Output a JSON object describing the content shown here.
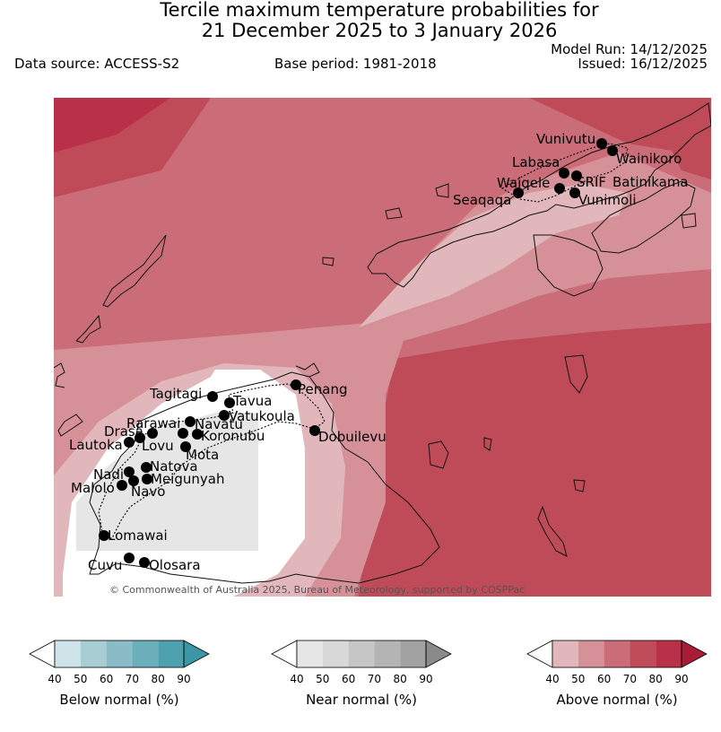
{
  "title": {
    "line1": "Tercile maximum temperature probabilities for",
    "line2": "21 December 2025 to 3 January 2026"
  },
  "header": {
    "data_source": "Data source: ACCESS-S2",
    "base_period": "Base period: 1981-2018",
    "model_run": "Model Run: 14/12/2025",
    "issued": "Issued: 16/12/2025"
  },
  "map": {
    "copyright": "© Commonwealth of Australia 2025, Bureau of Meteorology, supported by COSPPac",
    "stations": [
      "Vunivutu",
      "Wainikoro",
      "Labasa",
      "Waiqele",
      "SRIF",
      "Batinikama",
      "Seaqaqa",
      "Vunimoli",
      "Tagitagi",
      "Tavua",
      "Penang",
      "Vatukoula",
      "Rarawai",
      "Navatu",
      "Drasa",
      "Koronubu",
      "Lautoka",
      "Lovu",
      "Mota",
      "Dobuilevu",
      "Natova",
      "Nadi",
      "Meigunyah",
      "Malolo",
      "Navo",
      "Lomawai",
      "Cuvu",
      "Olosara"
    ]
  },
  "colorbars": [
    {
      "title": "Below normal (%)",
      "ticks": [
        "40",
        "50",
        "60",
        "70",
        "80",
        "90"
      ],
      "colors": [
        "#cfe4e8",
        "#a8cdd3",
        "#89bcc6",
        "#6aafba",
        "#4da1ae"
      ],
      "over": "#3b97a6"
    },
    {
      "title": "Near normal (%)",
      "ticks": [
        "40",
        "50",
        "60",
        "70",
        "80",
        "90"
      ],
      "colors": [
        "#e6e6e6",
        "#d8d8d8",
        "#c6c6c6",
        "#b4b4b4",
        "#a2a2a2"
      ],
      "over": "#8a8a8a"
    },
    {
      "title": "Above normal (%)",
      "ticks": [
        "40",
        "50",
        "60",
        "70",
        "80",
        "90"
      ],
      "colors": [
        "#e2b7bb",
        "#d69198",
        "#ca6d78",
        "#bf4a58",
        "#b93049"
      ],
      "over": "#a81c38"
    }
  ]
}
